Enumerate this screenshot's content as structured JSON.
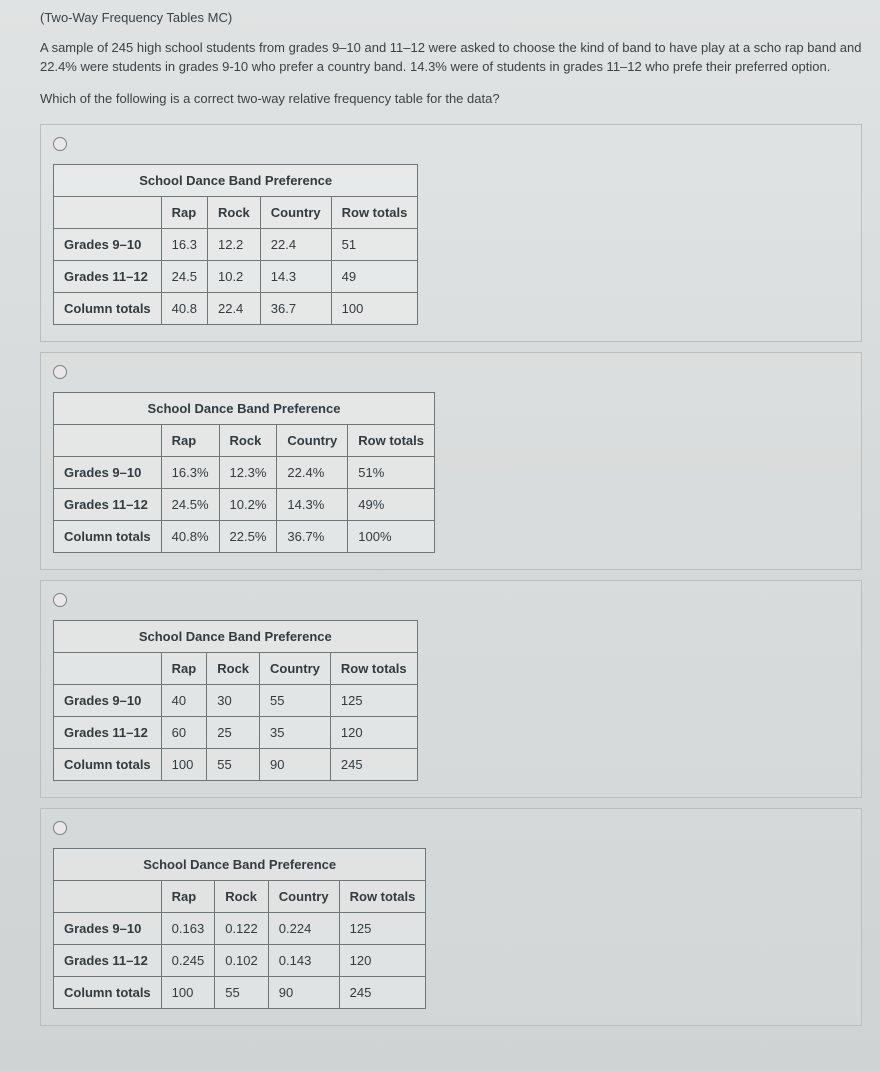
{
  "header": "(Two-Way Frequency Tables MC)",
  "body": "A sample of 245 high school students from grades 9–10 and 11–12 were asked to choose the kind of band to have play at a scho rap band and 22.4% were students in grades 9-10 who prefer a country band. 14.3% were of students in grades 11–12 who prefe their preferred option.",
  "prompt": "Which of the following is a correct two-way relative frequency table for the data?",
  "common": {
    "caption": "School Dance Band Preference",
    "col_headers": [
      "Rap",
      "Rock",
      "Country",
      "Row totals"
    ],
    "row_headers": [
      "Grades 9–10",
      "Grades 11–12",
      "Column totals"
    ]
  },
  "options": [
    {
      "rows": [
        [
          "16.3",
          "12.2",
          "22.4",
          "51"
        ],
        [
          "24.5",
          "10.2",
          "14.3",
          "49"
        ],
        [
          "40.8",
          "22.4",
          "36.7",
          "100"
        ]
      ]
    },
    {
      "rows": [
        [
          "16.3%",
          "12.3%",
          "22.4%",
          "51%"
        ],
        [
          "24.5%",
          "10.2%",
          "14.3%",
          "49%"
        ],
        [
          "40.8%",
          "22.5%",
          "36.7%",
          "100%"
        ]
      ]
    },
    {
      "rows": [
        [
          "40",
          "30",
          "55",
          "125"
        ],
        [
          "60",
          "25",
          "35",
          "120"
        ],
        [
          "100",
          "55",
          "90",
          "245"
        ]
      ]
    },
    {
      "rows": [
        [
          "0.163",
          "0.122",
          "0.224",
          "125"
        ],
        [
          "0.245",
          "0.102",
          "0.143",
          "120"
        ],
        [
          "100",
          "55",
          "90",
          "245"
        ]
      ]
    }
  ]
}
